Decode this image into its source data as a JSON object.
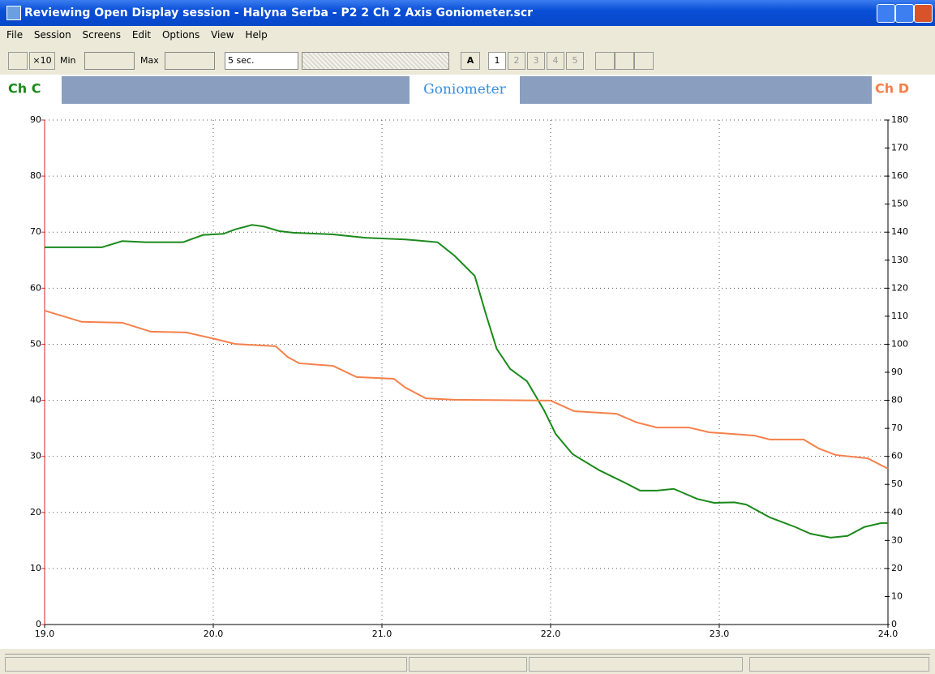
{
  "window": {
    "title": "Reviewing Open Display session - Halyna Serba - P2 2 Ch 2 Axis Goniometer.scr",
    "menu": [
      "File",
      "Session",
      "Screens",
      "Edit",
      "Options",
      "View",
      "Help"
    ],
    "toolbar": {
      "zoom": "×10",
      "min": "Min",
      "max": "Max",
      "timebase": "5 sec.",
      "auto": "A",
      "screens": [
        "1",
        "2",
        "3",
        "4",
        "5"
      ]
    }
  },
  "chart_data": {
    "type": "line",
    "title": "Goniometer",
    "xlim": [
      19,
      24
    ],
    "xticks": [
      {
        "value": 19,
        "label": "19.0"
      },
      {
        "value": 20,
        "label": "20.0"
      },
      {
        "value": 21,
        "label": "21.0"
      },
      {
        "value": 22,
        "label": "22.0"
      },
      {
        "value": 23,
        "label": "23.0"
      },
      {
        "value": 24,
        "label": "24.0"
      }
    ],
    "ylim": [
      0,
      90
    ],
    "yticks": [
      0,
      10,
      20,
      30,
      40,
      50,
      60,
      70,
      80,
      90
    ],
    "y2lim": [
      0,
      180
    ],
    "y2ticks": [
      0,
      10,
      20,
      30,
      40,
      50,
      60,
      70,
      80,
      90,
      100,
      110,
      120,
      130,
      140,
      150,
      160,
      170,
      180
    ],
    "grid": true,
    "series": [
      {
        "name": "Ch C",
        "color": "#1a8a1a",
        "axis": "y",
        "x": [
          19,
          19.34,
          19.46,
          19.6,
          19.82,
          19.94,
          20.06,
          20.13,
          20.23,
          20.3,
          20.39,
          20.47,
          20.71,
          20.9,
          21.14,
          21.33,
          21.43,
          21.55,
          21.62,
          21.68,
          21.76,
          21.86,
          21.96,
          22.03,
          22.13,
          22.29,
          22.44,
          22.53,
          22.63,
          22.73,
          22.87,
          22.97,
          23.09,
          23.16,
          23.3,
          23.45,
          23.54,
          23.66,
          23.76,
          23.86,
          23.96,
          24
        ],
        "values": [
          67.3,
          67.3,
          68.4,
          68.2,
          68.2,
          69.5,
          69.7,
          70.5,
          71.3,
          71.0,
          70.2,
          69.9,
          69.6,
          69.0,
          68.7,
          68.2,
          65.8,
          62.2,
          55.0,
          49.2,
          45.6,
          43.4,
          38.3,
          34.0,
          30.4,
          27.5,
          25.3,
          23.9,
          23.9,
          24.2,
          22.4,
          21.7,
          21.8,
          21.4,
          19.1,
          17.4,
          16.2,
          15.5,
          15.8,
          17.4,
          18.1,
          18.1
        ]
      },
      {
        "name": "Ch D",
        "color": "#f5804a",
        "axis": "y2",
        "x": [
          19,
          19.22,
          19.46,
          19.63,
          19.84,
          20.01,
          20.13,
          20.37,
          20.44,
          20.51,
          20.71,
          20.85,
          21.07,
          21.14,
          21.26,
          21.43,
          22.0,
          22.14,
          22.39,
          22.51,
          22.63,
          22.82,
          22.94,
          23.21,
          23.3,
          23.5,
          23.59,
          23.69,
          23.88,
          24
        ],
        "values": [
          112,
          108,
          107.7,
          104.5,
          104.2,
          101.9,
          100.1,
          99.3,
          95.5,
          93.2,
          92.3,
          88.3,
          87.7,
          84.5,
          80.7,
          80.2,
          79.9,
          76.1,
          75.2,
          72.1,
          70.3,
          70.3,
          68.6,
          67.4,
          66.0,
          66.0,
          62.8,
          60.5,
          59.3,
          55.6
        ]
      }
    ]
  }
}
